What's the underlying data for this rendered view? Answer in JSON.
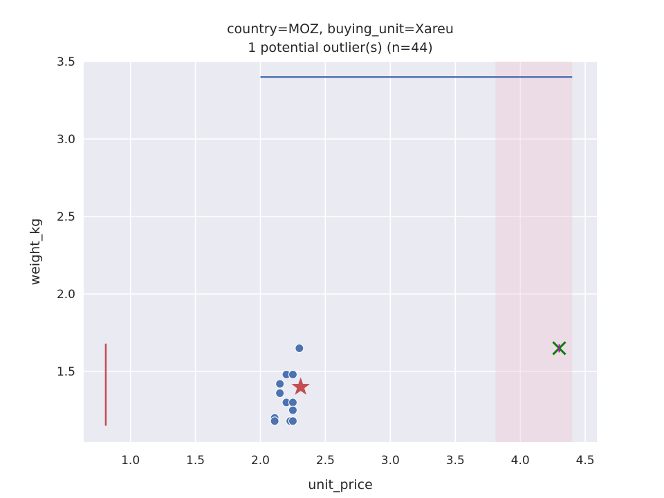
{
  "chart_data": {
    "type": "scatter",
    "title": "country=MOZ, buying_unit=Xareu",
    "subtitle": "1 potential outlier(s) (n=44)",
    "xlabel": "unit_price",
    "ylabel": "weight_kg",
    "xlim": [
      0.64,
      4.59
    ],
    "ylim": [
      1.045,
      3.5
    ],
    "xticks": [
      "1.0",
      "1.5",
      "2.0",
      "2.5",
      "3.0",
      "3.5",
      "4.0",
      "4.5"
    ],
    "xtick_values": [
      1.0,
      1.5,
      2.0,
      2.5,
      3.0,
      3.5,
      4.0,
      4.5
    ],
    "yticks": [
      "1.5",
      "2.0",
      "2.5",
      "3.0",
      "3.5"
    ],
    "ytick_values": [
      1.5,
      2.0,
      2.5,
      3.0,
      3.5
    ],
    "grid": true,
    "background_color": "#eaeaf2",
    "points": {
      "color": "#4c72b0",
      "x": [
        2.3,
        2.2,
        2.25,
        2.15,
        2.15,
        2.2,
        2.25,
        2.25,
        2.11,
        2.11,
        2.23,
        2.25
      ],
      "y": [
        1.65,
        1.48,
        1.48,
        1.42,
        1.36,
        1.3,
        1.3,
        1.25,
        1.2,
        1.18,
        1.18,
        1.18
      ]
    },
    "center_marker": {
      "x": 2.31,
      "y": 1.4,
      "color": "#c44e52",
      "symbol": "star"
    },
    "outlier_marker": {
      "x": 4.3,
      "y": 1.65,
      "color": "#008000",
      "inner_color": "#cc00cc",
      "symbol": "x"
    },
    "horizontal_range_line": {
      "x_start": 2.0,
      "x_end": 4.4,
      "y": 3.4,
      "color": "#4c72b0"
    },
    "vertical_range_line": {
      "x": 0.81,
      "y_start": 1.15,
      "y_end": 1.68,
      "color": "#c44e52"
    },
    "shaded_region": {
      "x_start": 3.81,
      "x_end": 4.4,
      "color": "#f2c4d2",
      "opacity": 0.35
    }
  }
}
